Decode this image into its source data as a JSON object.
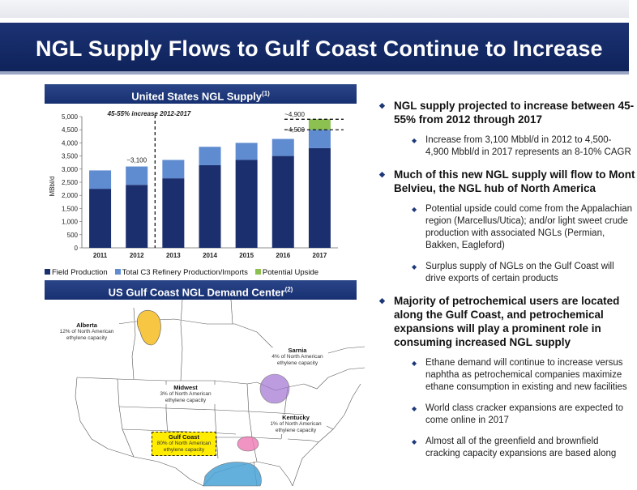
{
  "slide": {
    "title": "NGL Supply Flows to Gulf Coast Continue to Increase"
  },
  "supply_panel": {
    "header": "United States NGL Supply",
    "header_note": "(1)"
  },
  "demand_panel": {
    "header": "US Gulf Coast NGL Demand Center",
    "header_note": "(2)"
  },
  "chart_data": {
    "type": "bar",
    "stacked": true,
    "categories": [
      "2011",
      "2012",
      "2013",
      "2014",
      "2015",
      "2016",
      "2017"
    ],
    "series": [
      {
        "name": "Field Production",
        "color": "#1b2f6e",
        "values": [
          2250,
          2400,
          2650,
          3150,
          3350,
          3500,
          3800
        ]
      },
      {
        "name": "Total C3 Refinery Production/Imports",
        "color": "#5f8bd0",
        "values": [
          700,
          700,
          700,
          700,
          650,
          650,
          700
        ]
      },
      {
        "name": "Potential Upside",
        "color": "#8cc152",
        "values": [
          0,
          0,
          0,
          0,
          0,
          0,
          400
        ]
      }
    ],
    "ylabel": "MBbl/d",
    "ylim": [
      0,
      5000
    ],
    "yticks": [
      "5,000",
      "4,500",
      "4,000",
      "3,500",
      "3,000",
      "2,500",
      "2,000",
      "1,500",
      "1,000",
      "500",
      "0"
    ],
    "annotations": {
      "increase": "45-55% increase  2012-2017",
      "y2012": "~3,100",
      "hi": "~4,900",
      "lo": "~4,500"
    }
  },
  "map": {
    "regions": [
      {
        "name": "Alberta",
        "detail": "12% of North American ethylene capacity"
      },
      {
        "name": "Sarnia",
        "detail": "4% of North American ethylene capacity"
      },
      {
        "name": "Midwest",
        "detail": "3% of North American ethylene capacity"
      },
      {
        "name": "Kentucky",
        "detail": "1% of North American ethylene capacity"
      },
      {
        "name": "Gulf Coast",
        "detail": "80% of North American ethylene capacity"
      }
    ],
    "colors": {
      "alberta": "#f7c744",
      "sarnia": "#a67bd3",
      "kentucky": "#f07ab5",
      "gulf": "#4aa3d6"
    }
  },
  "bullets": [
    {
      "text": "NGL supply projected to increase between 45-\n55% from 2012 through 2017",
      "sub": [
        "Increase from 3,100 Mbbl/d in 2012 to 4,500-\n4,900 Mbbl/d in 2017 represents an 8-10% CAGR"
      ]
    },
    {
      "text": "Much of this new NGL supply will flow to Mont\nBelvieu, the NGL hub of North America",
      "sub": [
        "Potential upside could come from the Appalachian\nregion (Marcellus/Utica); and/or light sweet crude\nproduction with associated NGLs (Permian,\nBakken, Eagleford)",
        "Surplus supply of NGLs on the Gulf Coast will\ndrive exports of certain products"
      ]
    },
    {
      "text": "Majority of petrochemical users are located\nalong the Gulf Coast, and petrochemical\nexpansions will play a prominent role in\nconsuming increased NGL supply",
      "sub": [
        "Ethane demand will continue to increase versus\nnaphtha as petrochemical companies maximize\nethane consumption in existing and new facilities",
        "World class cracker expansions are expected to\ncome online in 2017",
        "Almost all of the greenfield and brownfield\ncracking capacity expansions are based along"
      ]
    }
  ]
}
